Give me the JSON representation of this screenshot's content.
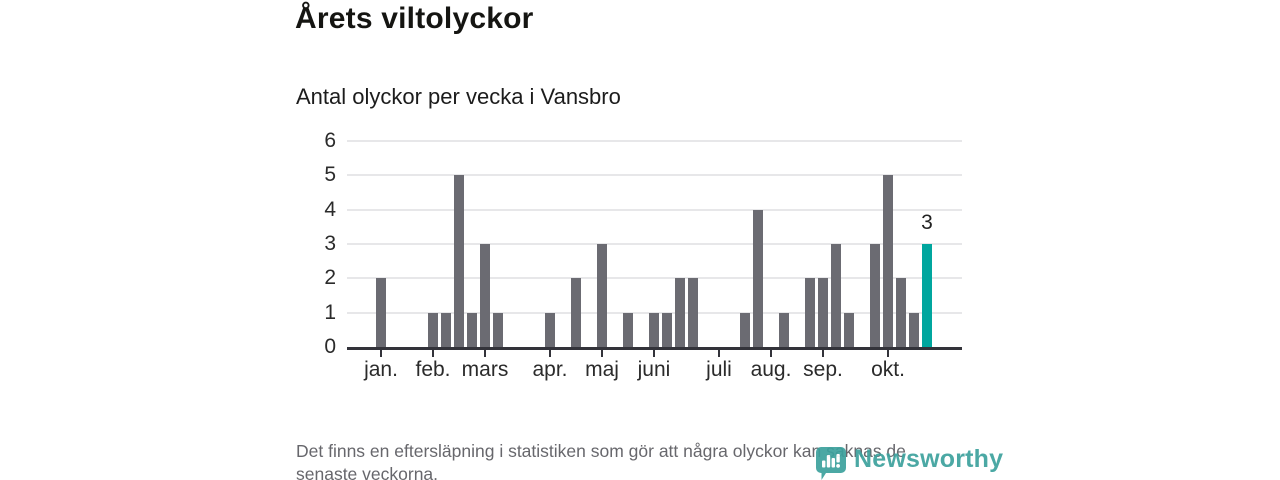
{
  "chart_data": {
    "type": "bar",
    "title": "Årets viltolyckor",
    "subtitle": "Antal olyckor per vecka i Vansbro",
    "x_unit": "week",
    "values": [
      2,
      0,
      0,
      0,
      1,
      1,
      5,
      1,
      3,
      1,
      0,
      0,
      0,
      1,
      0,
      2,
      0,
      3,
      0,
      1,
      0,
      1,
      1,
      2,
      2,
      0,
      0,
      0,
      1,
      4,
      0,
      1,
      0,
      2,
      2,
      3,
      1,
      0,
      3,
      5,
      2,
      1,
      3
    ],
    "highlight": {
      "index": 42,
      "value": 3,
      "label": "3"
    },
    "ylim": [
      0,
      6
    ],
    "yticks": [
      0,
      1,
      2,
      3,
      4,
      5,
      6
    ],
    "month_ticks": [
      {
        "label": "jan.",
        "week": 0
      },
      {
        "label": "feb.",
        "week": 4
      },
      {
        "label": "mars",
        "week": 8
      },
      {
        "label": "apr.",
        "week": 13
      },
      {
        "label": "maj",
        "week": 17
      },
      {
        "label": "juni",
        "week": 21
      },
      {
        "label": "juli",
        "week": 26
      },
      {
        "label": "aug.",
        "week": 30
      },
      {
        "label": "sep.",
        "week": 34
      },
      {
        "label": "okt.",
        "week": 39
      }
    ],
    "grid": true,
    "legend": null,
    "colors": {
      "bar": "#6b6b72",
      "highlight": "#00a69e",
      "axis": "#33333a",
      "gridline": "#e7e7e9",
      "label": "#2b2b2b"
    }
  },
  "footer": {
    "lines": [
      "Det finns en eftersläpning i statistiken som gör att några olyckor kan saknas de",
      "senaste veckorna."
    ]
  },
  "logo": {
    "text": "Newsworthy",
    "color": "#3ca19d"
  }
}
